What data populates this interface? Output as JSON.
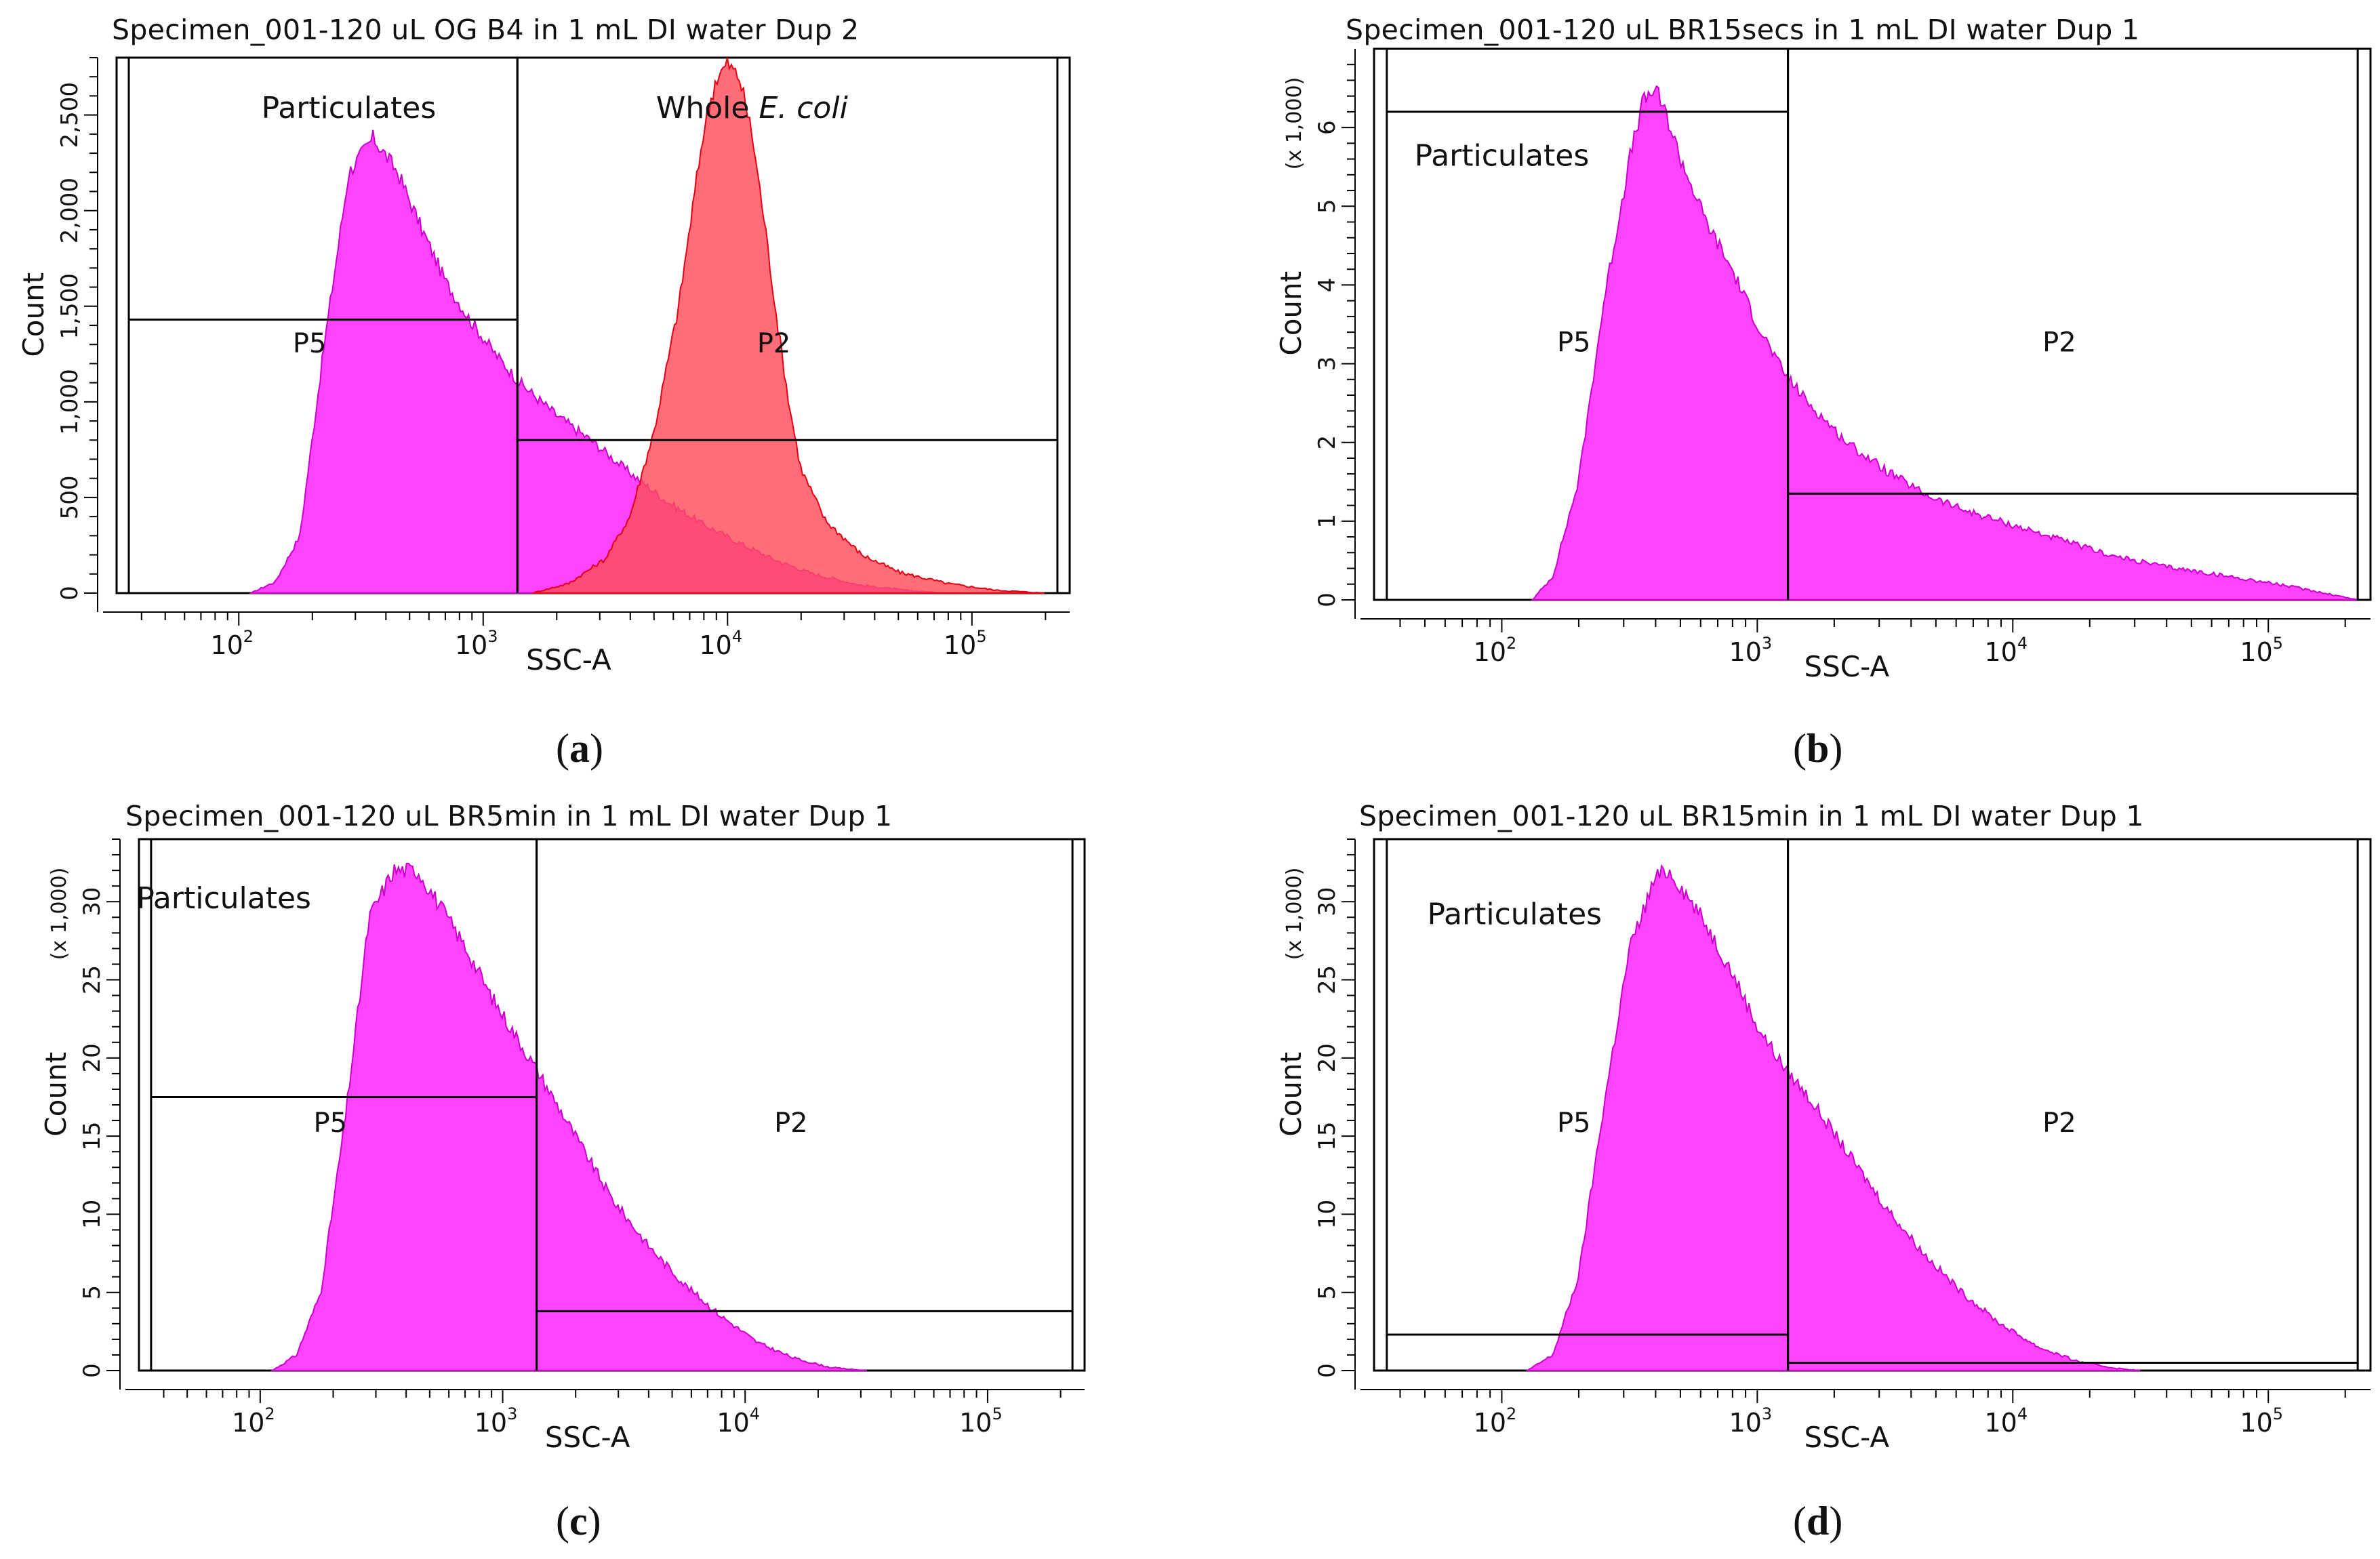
{
  "figure": {
    "colors": {
      "magenta_fill": "#ff33ff",
      "magenta_stroke": "#cc00cc",
      "red_fill": "#ff4d5a",
      "red_stroke": "#e60012",
      "overlap_fill": "#ff2b8a",
      "gate_line": "#000000"
    }
  },
  "chart_data": [
    {
      "panel_id": "a",
      "type": "histogram",
      "title": "Specimen_001-120 uL OG B4 in 1 mL DI water Dup 2",
      "caption": "a",
      "xlabel": "SSC-A",
      "ylabel": "Count",
      "y_multiplier_label": "",
      "xscale": "log",
      "xlim_log10": [
        1.5,
        5.4
      ],
      "ylim": [
        0,
        2800
      ],
      "yticks": [
        0,
        500,
        1000,
        1500,
        2000,
        2500
      ],
      "ytick_labels": [
        "0",
        "500",
        "1,000",
        "1,500",
        "2,000",
        "2,500"
      ],
      "xticks_log10": [
        2,
        3,
        4,
        5
      ],
      "xtick_labels": [
        "10",
        "10",
        "10",
        "10"
      ],
      "xtick_exponents": [
        "2",
        "3",
        "4",
        "5"
      ],
      "gates": [
        {
          "name": "P5",
          "label": "P5",
          "x_range_log10": [
            1.55,
            3.14
          ],
          "y_level": 1430
        },
        {
          "name": "P2",
          "label": "P2",
          "x_range_log10": [
            3.14,
            5.35
          ],
          "y_level": 800
        }
      ],
      "annotations": [
        {
          "id": "particulates",
          "text": "Particulates",
          "x_log10": 2.45,
          "y": 2520
        },
        {
          "id": "whole-ecoli",
          "text": "Whole ",
          "italic_text": "E. coli",
          "x_log10": 4.1,
          "y": 2520
        }
      ],
      "series": [
        {
          "name": "Particulates",
          "color": "magenta",
          "x_log10": [
            2.05,
            2.15,
            2.25,
            2.35,
            2.45,
            2.55,
            2.65,
            2.75,
            2.85,
            2.95,
            3.05,
            3.15,
            3.3,
            3.45,
            3.6,
            3.75,
            3.9,
            4.05,
            4.2,
            4.35,
            4.55,
            4.75,
            4.9
          ],
          "counts": [
            0,
            60,
            300,
            1300,
            2200,
            2380,
            2200,
            1900,
            1620,
            1420,
            1250,
            1100,
            930,
            790,
            630,
            480,
            360,
            260,
            170,
            100,
            40,
            12,
            0
          ]
        },
        {
          "name": "Whole E. coli",
          "color": "red",
          "x_log10": [
            3.2,
            3.35,
            3.5,
            3.6,
            3.7,
            3.8,
            3.85,
            3.9,
            3.95,
            4.0,
            4.05,
            4.1,
            4.15,
            4.2,
            4.25,
            4.3,
            4.4,
            4.55,
            4.7,
            4.9,
            5.1,
            5.3
          ],
          "counts": [
            0,
            50,
            180,
            400,
            850,
            1500,
            1950,
            2400,
            2680,
            2770,
            2690,
            2400,
            1950,
            1450,
            1000,
            650,
            380,
            200,
            110,
            50,
            15,
            0
          ]
        }
      ]
    },
    {
      "panel_id": "b",
      "type": "histogram",
      "title": "Specimen_001-120 uL BR15secs in 1 mL DI water Dup 1",
      "caption": "b",
      "xlabel": "SSC-A",
      "ylabel": "Count",
      "y_multiplier_label": "(x 1,000)",
      "xscale": "log",
      "xlim_log10": [
        1.5,
        5.4
      ],
      "ylim": [
        0,
        7
      ],
      "yticks": [
        0,
        1,
        2,
        3,
        4,
        5,
        6
      ],
      "ytick_labels": [
        "0",
        "1",
        "2",
        "3",
        "4",
        "5",
        "6"
      ],
      "xticks_log10": [
        2,
        3,
        4,
        5
      ],
      "xtick_labels": [
        "10",
        "10",
        "10",
        "10"
      ],
      "xtick_exponents": [
        "2",
        "3",
        "4",
        "5"
      ],
      "gates": [
        {
          "name": "P5",
          "label": "P5",
          "x_range_log10": [
            1.55,
            3.12
          ],
          "y_level": 6.2
        },
        {
          "name": "P2",
          "label": "P2",
          "x_range_log10": [
            3.12,
            5.35
          ],
          "y_level": 1.35
        }
      ],
      "annotations": [
        {
          "id": "particulates",
          "text": "Particulates",
          "x_log10": 2.0,
          "y": 5.6
        }
      ],
      "series": [
        {
          "name": "Particulates",
          "color": "magenta",
          "x_log10": [
            2.12,
            2.2,
            2.3,
            2.4,
            2.5,
            2.55,
            2.6,
            2.65,
            2.7,
            2.8,
            2.9,
            3.0,
            3.1,
            3.2,
            3.35,
            3.5,
            3.65,
            3.8,
            4.0,
            4.2,
            4.4,
            4.6,
            4.8,
            5.0,
            5.2,
            5.35
          ],
          "counts": [
            0,
            0.3,
            1.5,
            3.8,
            5.6,
            6.3,
            6.5,
            6.1,
            5.6,
            4.8,
            4.2,
            3.5,
            2.9,
            2.5,
            2.0,
            1.65,
            1.35,
            1.15,
            0.95,
            0.75,
            0.55,
            0.42,
            0.32,
            0.22,
            0.1,
            0
          ]
        }
      ]
    },
    {
      "panel_id": "c",
      "type": "histogram",
      "title": "Specimen_001-120 uL BR5min in 1 mL DI water Dup 1",
      "caption": "c",
      "xlabel": "SSC-A",
      "ylabel": "Count",
      "y_multiplier_label": "(x 1,000)",
      "xscale": "log",
      "xlim_log10": [
        1.5,
        5.4
      ],
      "ylim": [
        0,
        34
      ],
      "yticks": [
        0,
        5,
        10,
        15,
        20,
        25,
        30
      ],
      "ytick_labels": [
        "0",
        "5",
        "10",
        "15",
        "20",
        "25",
        "30"
      ],
      "xticks_log10": [
        2,
        3,
        4,
        5
      ],
      "xtick_labels": [
        "10",
        "10",
        "10",
        "10"
      ],
      "xtick_exponents": [
        "2",
        "3",
        "4",
        "5"
      ],
      "gates": [
        {
          "name": "P5",
          "label": "P5",
          "x_range_log10": [
            1.55,
            3.14
          ],
          "y_level": 17.5
        },
        {
          "name": "P2",
          "label": "P2",
          "x_range_log10": [
            3.14,
            5.35
          ],
          "y_level": 3.8
        }
      ],
      "annotations": [
        {
          "id": "particulates",
          "text": "Particulates",
          "x_log10": 1.85,
          "y": 30
        }
      ],
      "series": [
        {
          "name": "Particulates",
          "color": "magenta",
          "x_log10": [
            2.05,
            2.15,
            2.25,
            2.35,
            2.45,
            2.55,
            2.65,
            2.75,
            2.85,
            2.95,
            3.05,
            3.15,
            3.3,
            3.45,
            3.6,
            3.75,
            3.9,
            4.05,
            4.2,
            4.35,
            4.5
          ],
          "counts": [
            0,
            1,
            5,
            16,
            29,
            32,
            32,
            29.5,
            27,
            24,
            21.5,
            19,
            15,
            11,
            8,
            5.5,
            3.5,
            1.8,
            0.8,
            0.2,
            0
          ]
        }
      ]
    },
    {
      "panel_id": "d",
      "type": "histogram",
      "title": "Specimen_001-120 uL BR15min in 1 mL DI water Dup 1",
      "caption": "d",
      "xlabel": "SSC-A",
      "ylabel": "Count",
      "y_multiplier_label": "(x 1,000)",
      "xscale": "log",
      "xlim_log10": [
        1.5,
        5.4
      ],
      "ylim": [
        0,
        34
      ],
      "yticks": [
        0,
        5,
        10,
        15,
        20,
        25,
        30
      ],
      "ytick_labels": [
        "0",
        "5",
        "10",
        "15",
        "20",
        "25",
        "30"
      ],
      "xticks_log10": [
        2,
        3,
        4,
        5
      ],
      "xtick_labels": [
        "10",
        "10",
        "10",
        "10"
      ],
      "xtick_exponents": [
        "2",
        "3",
        "4",
        "5"
      ],
      "gates": [
        {
          "name": "P5",
          "label": "P5",
          "x_range_log10": [
            1.55,
            3.12
          ],
          "y_level": 2.3
        },
        {
          "name": "P2",
          "label": "P2",
          "x_range_log10": [
            3.12,
            5.35
          ],
          "y_level": 0.5
        }
      ],
      "annotations": [
        {
          "id": "particulates",
          "text": "Particulates",
          "x_log10": 2.05,
          "y": 29
        }
      ],
      "series": [
        {
          "name": "Particulates",
          "color": "magenta",
          "x_log10": [
            2.1,
            2.2,
            2.3,
            2.4,
            2.5,
            2.6,
            2.65,
            2.7,
            2.8,
            2.9,
            3.0,
            3.1,
            3.2,
            3.35,
            3.5,
            3.65,
            3.8,
            3.95,
            4.1,
            4.25,
            4.4,
            4.5
          ],
          "counts": [
            0,
            1,
            6,
            17,
            27,
            31.5,
            32,
            31,
            28.5,
            25.5,
            22,
            19.5,
            17.5,
            14,
            10.5,
            7.5,
            5,
            3,
            1.5,
            0.6,
            0.15,
            0
          ]
        }
      ]
    }
  ]
}
